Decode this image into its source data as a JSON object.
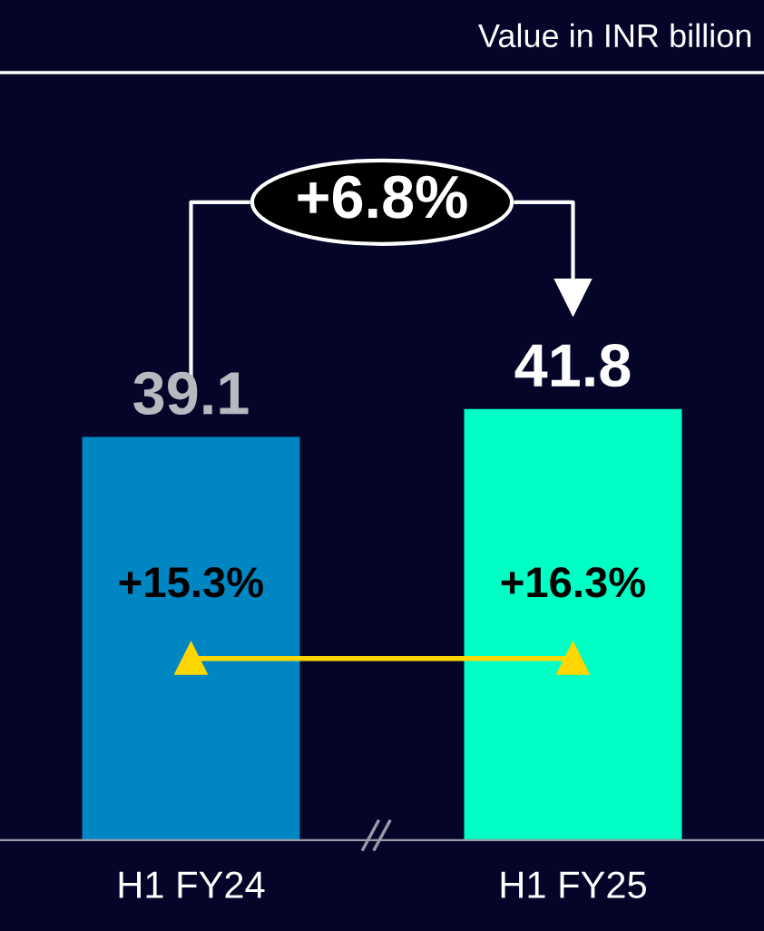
{
  "chart_data": {
    "type": "bar",
    "categories": [
      "H1 FY24",
      "H1 FY25"
    ],
    "values": [
      39.1,
      41.8
    ],
    "colors": [
      "#0086c3",
      "#00ffc4"
    ],
    "data_labels": true,
    "grid": false,
    "legend": false,
    "annotations": [
      "Value in INR billion",
      "+6.8%",
      "+15.3%",
      "+16.3%"
    ]
  }
}
